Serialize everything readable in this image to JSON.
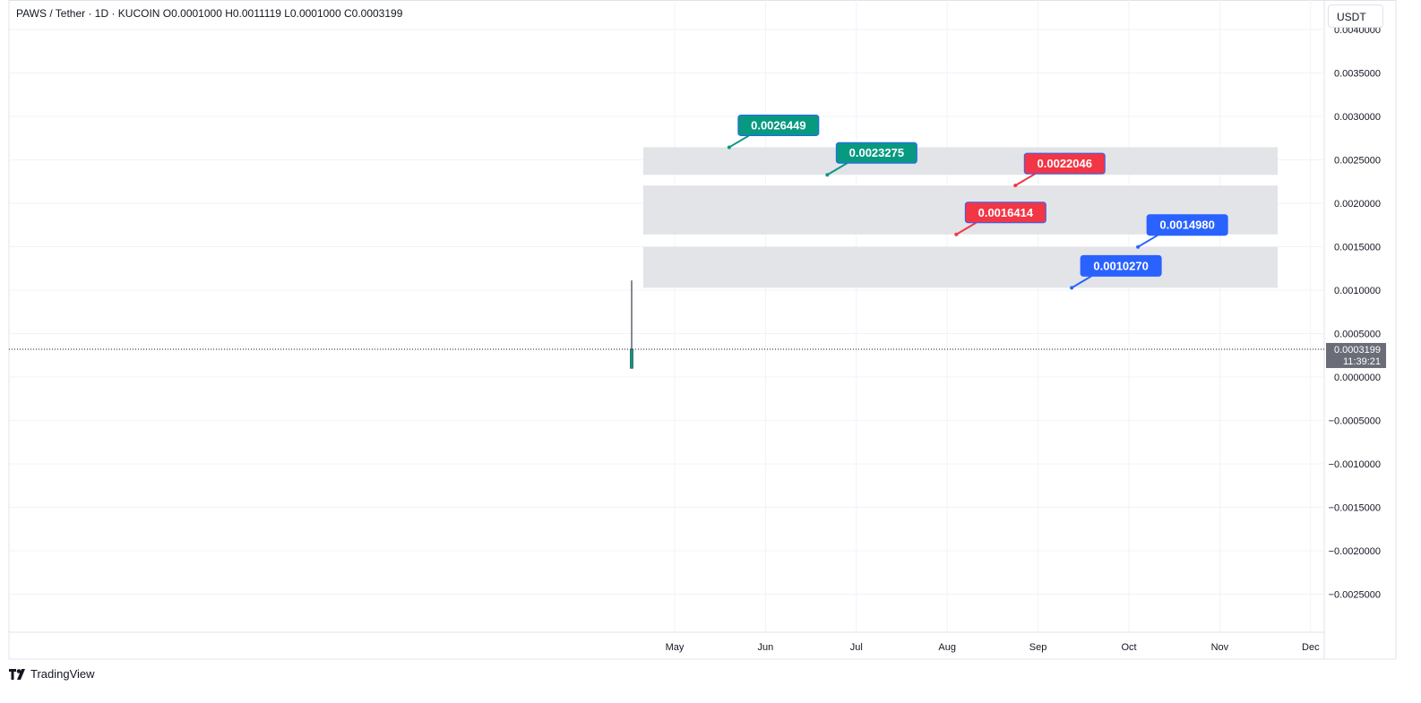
{
  "header": {
    "symbol_line": "PAWS / Tether · 1D · KUCOIN  O0.0001000  H0.0011119  L0.0001000  C0.0003199"
  },
  "currency_button": "USDT",
  "brand": {
    "label": "TradingView",
    "icon": "tradingview-logo-icon"
  },
  "price_badge": {
    "price": "0.0003199",
    "countdown": "11:39:21"
  },
  "colors": {
    "grid": "#f0f3fa",
    "zone_fill": "#e3e4e8",
    "label_green": "#089981",
    "label_red": "#f23645",
    "label_blue": "#2962ff",
    "candle": "#089981",
    "badge": "#6a6d78"
  },
  "chart_data": {
    "type": "candlestick",
    "title": "PAWS / Tether · 1D · KUCOIN",
    "ylim": [
      -0.003,
      0.004
    ],
    "y_ticks": [
      "0.0040000",
      "0.0035000",
      "0.0030000",
      "0.0025000",
      "0.0020000",
      "0.0015000",
      "0.0010000",
      "0.0005000",
      "0.0000000",
      "−0.0005000",
      "−0.0010000",
      "−0.0015000",
      "−0.0020000",
      "−0.0025000"
    ],
    "y_tick_values": [
      0.004,
      0.0035,
      0.003,
      0.0025,
      0.002,
      0.0015,
      0.001,
      0.0005,
      0,
      -0.0005,
      -0.001,
      -0.0015,
      -0.002,
      -0.0025
    ],
    "x_ticks": [
      "May",
      "Jun",
      "Jul",
      "Aug",
      "Sep",
      "Oct",
      "Nov",
      "Dec"
    ],
    "candles": [
      {
        "open": 0.0001,
        "high": 0.0011119,
        "low": 0.0001,
        "close": 0.0003199
      }
    ],
    "last_price": 0.0003199,
    "zones": [
      {
        "top": 0.0026449,
        "bottom": 0.0023275
      },
      {
        "top": 0.0022046,
        "bottom": 0.0016414
      },
      {
        "top": 0.001498,
        "bottom": 0.001027
      }
    ],
    "price_labels": [
      {
        "text": "0.0026449",
        "value": 0.0026449,
        "color": "green",
        "month_pos": 0.6
      },
      {
        "text": "0.0023275",
        "value": 0.0023275,
        "color": "green",
        "month_pos": 1.68
      },
      {
        "text": "0.0022046",
        "value": 0.0022046,
        "color": "red",
        "month_pos": 3.75
      },
      {
        "text": "0.0016414",
        "value": 0.0016414,
        "color": "red",
        "month_pos": 3.1
      },
      {
        "text": "0.0014980",
        "value": 0.001498,
        "color": "blue",
        "month_pos": 5.1
      },
      {
        "text": "0.0010270",
        "value": 0.001027,
        "color": "blue",
        "month_pos": 4.37
      }
    ]
  }
}
